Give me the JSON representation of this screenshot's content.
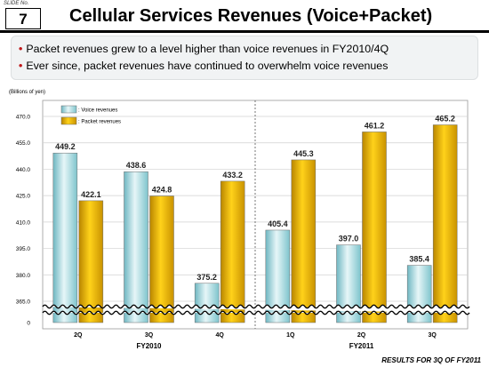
{
  "slide": {
    "label": "SLIDE No.",
    "number": "7"
  },
  "title": "Cellular Services Revenues (Voice+Packet)",
  "bullets": [
    "Packet revenues grew to a level higher than voice revenues in FY2010/4Q",
    "Ever since, packet revenues have continued to overwhelm voice revenues"
  ],
  "bullet_mark": "•",
  "footer": "RESULTS FOR 3Q OF FY2011",
  "colors": {
    "voice": "#a9dde3",
    "packet": "#e0aa00",
    "bullet": "#c0191b"
  },
  "chart_data": {
    "type": "bar",
    "unit_label": "(Billions of yen)",
    "categories": [
      "2Q",
      "3Q",
      "4Q",
      "1Q",
      "2Q",
      "3Q"
    ],
    "groups": [
      {
        "label": "FY2010",
        "count": 3
      },
      {
        "label": "FY2011",
        "count": 3
      }
    ],
    "series": [
      {
        "name": ": Voice revenues",
        "values": [
          449.2,
          438.6,
          375.2,
          405.4,
          397.0,
          385.4
        ]
      },
      {
        "name": ": Packet revenues",
        "values": [
          422.1,
          424.8,
          433.2,
          445.3,
          461.2,
          465.2
        ]
      }
    ],
    "data_labels": {
      "voice": [
        "449.2",
        "438.6",
        "375.2",
        "405.4",
        "397.0",
        "385.4"
      ],
      "packet": [
        "422.1",
        "424.8",
        "433.2",
        "445.3",
        "461.2",
        "465.2"
      ]
    },
    "y_ticks": [
      "470.0",
      "455.0",
      "440.0",
      "425.0",
      "410.0",
      "395.0",
      "380.0",
      "365.0",
      "0"
    ],
    "ylim": [
      365,
      470
    ],
    "axis_break": true,
    "grid": true,
    "legend": "top-left"
  }
}
